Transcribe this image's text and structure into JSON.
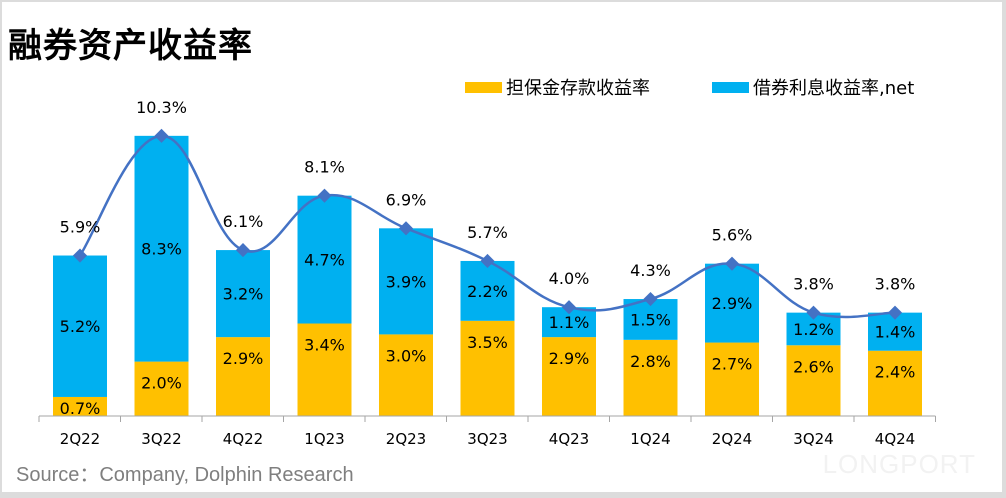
{
  "title": "融券资产收益率",
  "source": "Source：Company, Dolphin Research",
  "watermark": "LONGPORT",
  "colors": {
    "deposit": "#FFC000",
    "lending": "#00B0F0",
    "line": "#4472C4"
  },
  "chart_data": {
    "type": "bar",
    "stacked": true,
    "title": "融券资产收益率",
    "xlabel": "",
    "ylabel": "",
    "ylim": [
      0,
      11
    ],
    "grid": false,
    "legend_position": "top-right",
    "categories": [
      "2Q22",
      "3Q22",
      "4Q22",
      "1Q23",
      "2Q23",
      "3Q23",
      "4Q23",
      "1Q24",
      "2Q24",
      "3Q24",
      "4Q24"
    ],
    "series": [
      {
        "name": "担保金存款收益率",
        "type": "bar",
        "values": [
          0.7,
          2.0,
          2.9,
          3.4,
          3.0,
          3.5,
          2.9,
          2.8,
          2.7,
          2.6,
          2.4
        ],
        "labels": [
          "0.7%",
          "2.0%",
          "2.9%",
          "3.4%",
          "3.0%",
          "3.5%",
          "2.9%",
          "2.8%",
          "2.7%",
          "2.6%",
          "2.4%"
        ]
      },
      {
        "name": "借券利息收益率,net",
        "type": "bar",
        "values": [
          5.2,
          8.3,
          3.2,
          4.7,
          3.9,
          2.2,
          1.1,
          1.5,
          2.9,
          1.2,
          1.4
        ],
        "labels": [
          "5.2%",
          "8.3%",
          "3.2%",
          "4.7%",
          "3.9%",
          "2.2%",
          "1.1%",
          "1.5%",
          "2.9%",
          "1.2%",
          "1.4%"
        ]
      },
      {
        "name": "Total",
        "type": "line",
        "values": [
          5.9,
          10.3,
          6.1,
          8.1,
          6.9,
          5.7,
          4.0,
          4.3,
          5.6,
          3.8,
          3.8
        ],
        "labels": [
          "5.9%",
          "10.3%",
          "6.1%",
          "8.1%",
          "6.9%",
          "5.7%",
          "4.0%",
          "4.3%",
          "5.6%",
          "3.8%",
          "3.8%"
        ]
      }
    ]
  }
}
